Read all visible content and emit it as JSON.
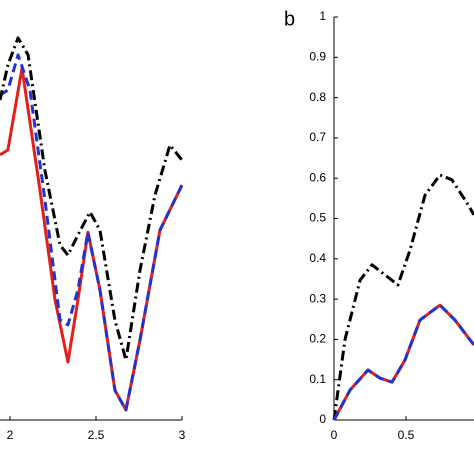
{
  "chart_data": [
    {
      "type": "line",
      "xlim": [
        1.942,
        3.0
      ],
      "xticks": [
        2,
        2.5,
        3
      ],
      "ylim": [
        0,
        1
      ],
      "series": [
        {
          "name": "solid",
          "color": "#e0201c",
          "style": "solid",
          "x": [
            1.942,
            1.988,
            2.07,
            2.174,
            2.262,
            2.337,
            2.395,
            2.453,
            2.523,
            2.61,
            2.674,
            2.756,
            2.872,
            3.0
          ],
          "values": [
            0.658,
            0.67,
            0.873,
            0.571,
            0.298,
            0.144,
            0.298,
            0.466,
            0.323,
            0.074,
            0.025,
            0.199,
            0.471,
            0.583
          ]
        },
        {
          "name": "dashed",
          "color": "#2233cc",
          "style": "dashed",
          "x": [
            1.942,
            1.988,
            2.047,
            2.116,
            2.203,
            2.291,
            2.337,
            2.395,
            2.453,
            2.523,
            2.61,
            2.674,
            2.756,
            2.872,
            3.0
          ],
          "values": [
            0.806,
            0.819,
            0.906,
            0.819,
            0.546,
            0.248,
            0.236,
            0.323,
            0.466,
            0.323,
            0.074,
            0.025,
            0.199,
            0.471,
            0.583
          ]
        },
        {
          "name": "dash-dot",
          "color": "#000000",
          "style": "dashdot",
          "x": [
            1.942,
            1.988,
            2.047,
            2.105,
            2.203,
            2.291,
            2.337,
            2.395,
            2.465,
            2.523,
            2.61,
            2.674,
            2.756,
            2.843,
            2.93,
            3.0
          ],
          "values": [
            0.794,
            0.881,
            0.948,
            0.906,
            0.62,
            0.434,
            0.409,
            0.459,
            0.516,
            0.471,
            0.248,
            0.149,
            0.372,
            0.558,
            0.682,
            0.645
          ]
        }
      ]
    },
    {
      "type": "line",
      "label": "b",
      "xlim": [
        0,
        0.972
      ],
      "xticks": [
        0,
        0.5
      ],
      "ylim": [
        0,
        1
      ],
      "yticks": [
        0,
        0.1,
        0.2,
        0.3,
        0.4,
        0.5,
        0.6,
        0.7,
        0.8,
        0.9,
        1
      ],
      "series": [
        {
          "name": "dash-dot",
          "color": "#000000",
          "style": "dashdot",
          "x": [
            0,
            0.076,
            0.181,
            0.264,
            0.354,
            0.444,
            0.528,
            0.632,
            0.736,
            0.819,
            0.91,
            0.972
          ],
          "values": [
            0,
            0.199,
            0.347,
            0.385,
            0.36,
            0.335,
            0.422,
            0.558,
            0.608,
            0.596,
            0.546,
            0.509
          ]
        },
        {
          "name": "solid",
          "color": "#e0201c",
          "style": "solid",
          "x": [
            0,
            0.111,
            0.236,
            0.319,
            0.403,
            0.493,
            0.597,
            0.736,
            0.84,
            0.972
          ],
          "values": [
            0,
            0.074,
            0.124,
            0.104,
            0.094,
            0.149,
            0.248,
            0.285,
            0.248,
            0.186
          ]
        },
        {
          "name": "dashed",
          "color": "#2233cc",
          "style": "dashed",
          "x": [
            0,
            0.111,
            0.236,
            0.319,
            0.403,
            0.493,
            0.597,
            0.736,
            0.84,
            0.972
          ],
          "values": [
            0,
            0.074,
            0.124,
            0.104,
            0.094,
            0.149,
            0.248,
            0.285,
            0.248,
            0.186
          ]
        }
      ]
    }
  ]
}
